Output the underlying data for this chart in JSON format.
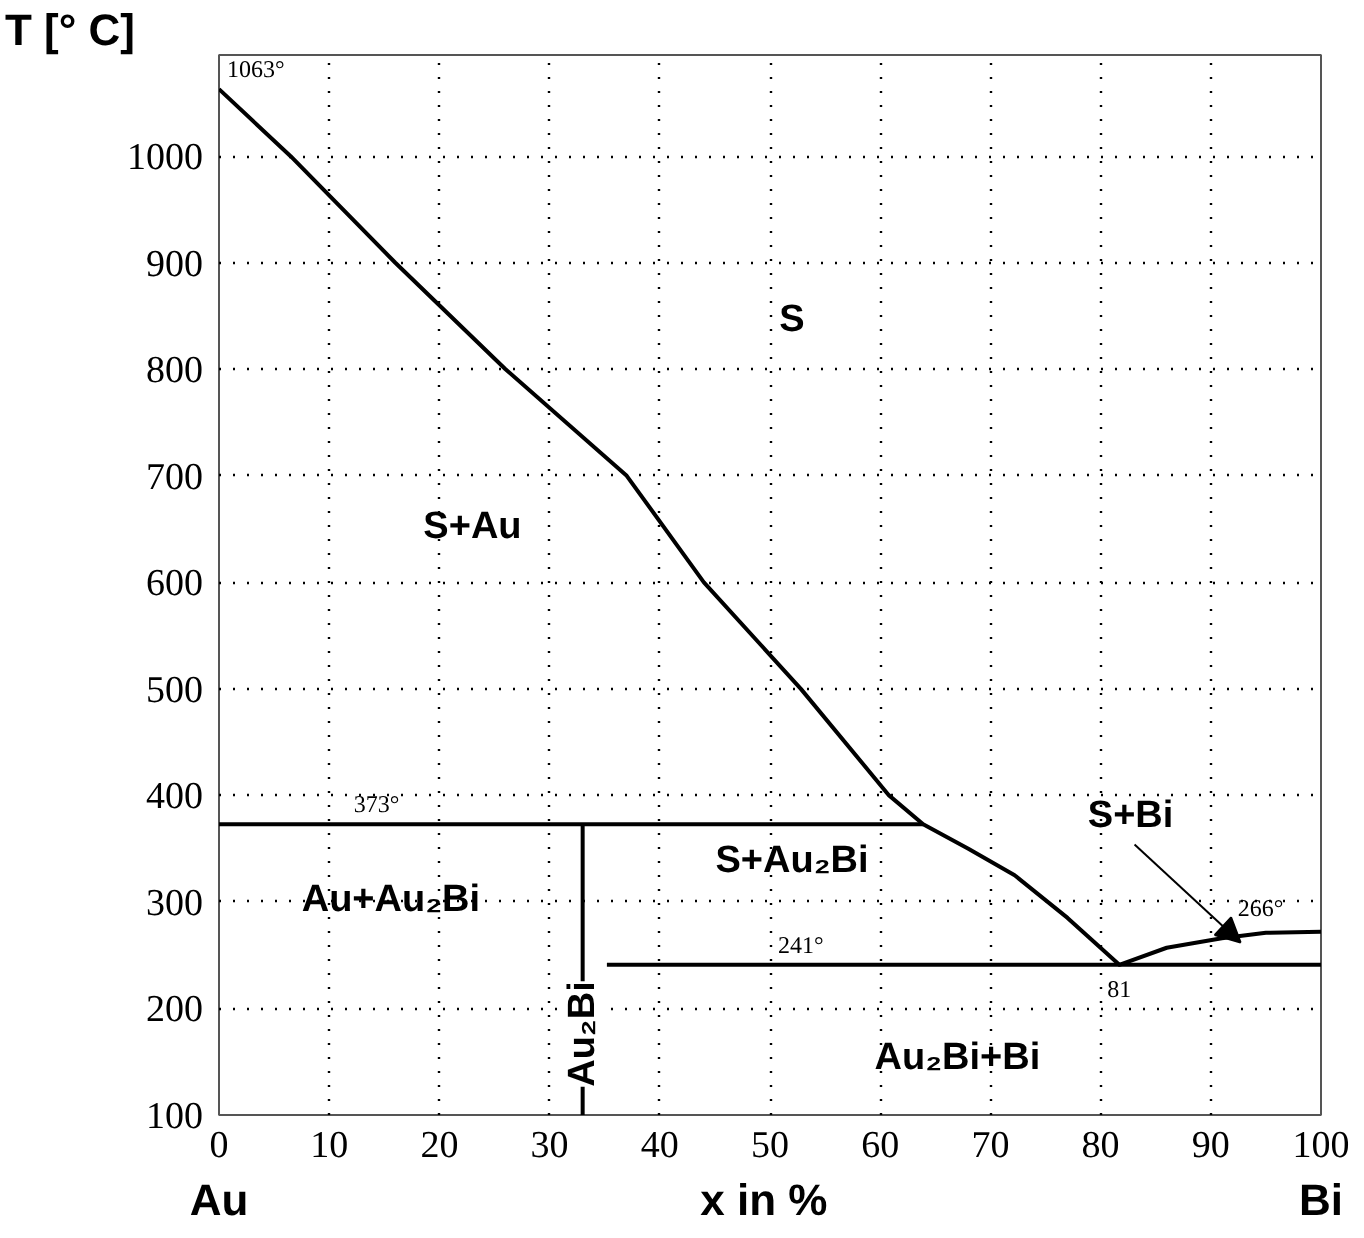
{
  "chart_data": {
    "type": "line",
    "ylabel": "T [° C]",
    "xlabel": "x  in %",
    "xlim": [
      0,
      100
    ],
    "ylim": [
      100,
      1095
    ],
    "xticks": [
      0,
      10,
      20,
      30,
      40,
      50,
      60,
      70,
      80,
      90,
      100
    ],
    "yticks": [
      100,
      200,
      300,
      400,
      500,
      600,
      700,
      800,
      900,
      1000
    ],
    "grid": true,
    "line_style": "solid",
    "marker": "none",
    "series": [
      {
        "color": "#000000",
        "x": [
          0,
          6.5,
          16,
          26,
          37,
          44,
          52.8,
          60.8,
          63.9,
          68,
          72.2,
          77,
          81.7,
          86,
          91,
          95,
          100
        ],
        "values": [
          1063,
          1000,
          900,
          800,
          700,
          600,
          500,
          400,
          373,
          350,
          325,
          285,
          241,
          257,
          266,
          271,
          272
        ]
      },
      {
        "color": "#000000",
        "x": [
          0,
          63.9
        ],
        "values": [
          373,
          373
        ]
      },
      {
        "color": "#000000",
        "x": [
          35.2,
          100
        ],
        "values": [
          241,
          241
        ]
      },
      {
        "color": "#000000",
        "x": [
          33,
          33
        ],
        "values": [
          373,
          100
        ]
      }
    ],
    "annotations": [
      {
        "text": "1063°",
        "x": 0,
        "y": 1063
      },
      {
        "text": "373°",
        "x": 14.3,
        "y": 373
      },
      {
        "text": "241°",
        "x": 52.8,
        "y": 241
      },
      {
        "text": "266°",
        "x": 91,
        "y": 266
      },
      {
        "text": "81",
        "x": 81.7,
        "y": 241
      },
      {
        "text": "Au₂Bi",
        "x": 33,
        "y": 176
      },
      {
        "text": "S+Bi",
        "x": 92.7,
        "y": 262
      },
      "S",
      "S+Au",
      "S+Au₂Bi",
      "Au+Au₂Bi",
      "Au₂Bi+Bi",
      "Au",
      "Bi"
    ]
  }
}
